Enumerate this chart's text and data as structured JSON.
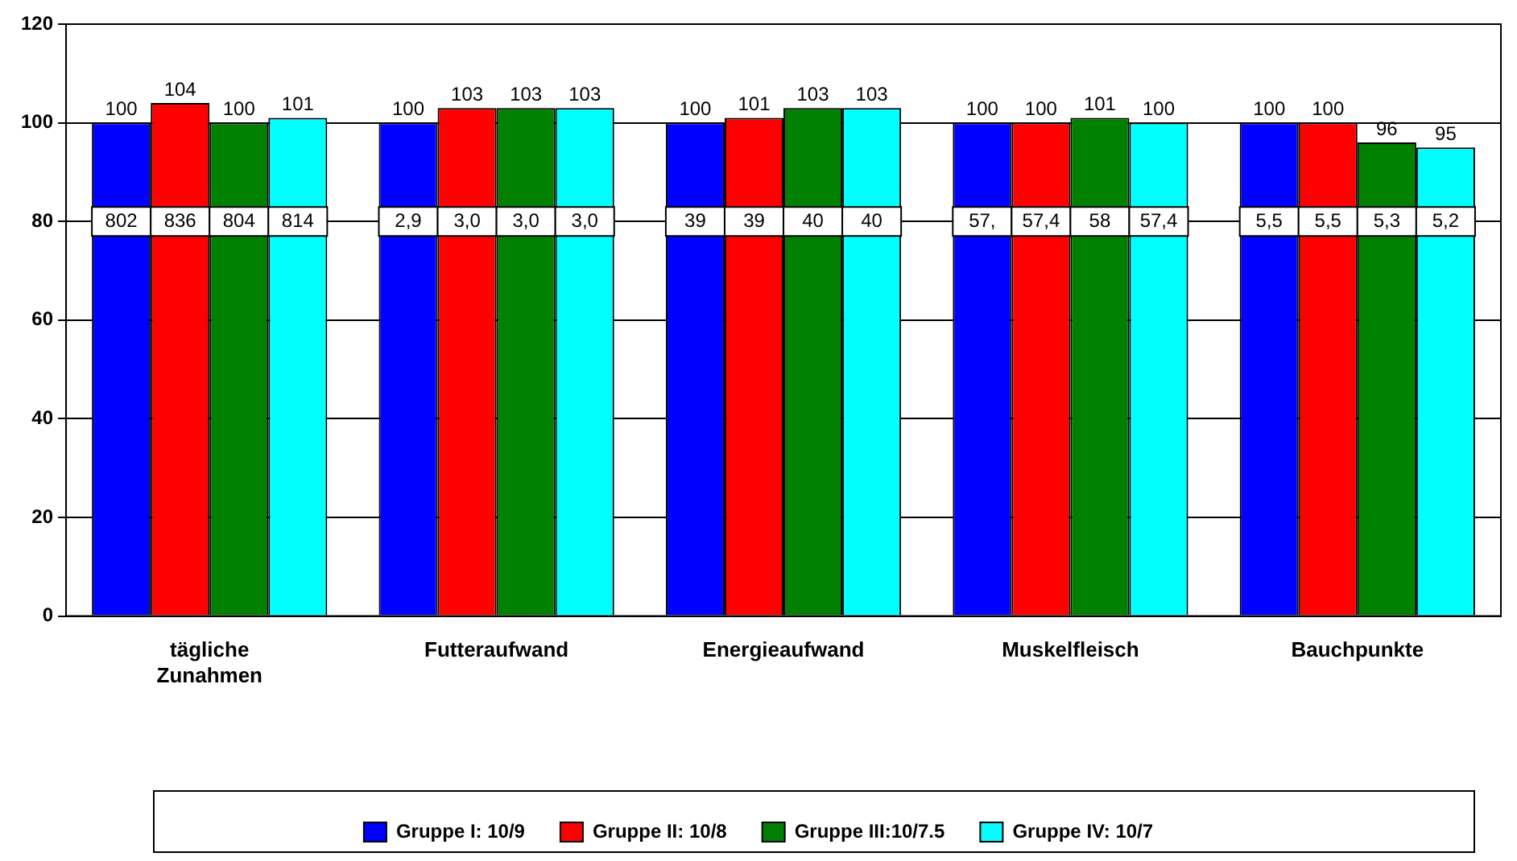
{
  "chart_data": {
    "type": "bar",
    "categories": [
      "tägliche\nZunahmen",
      "Futteraufwand",
      "Energieaufwand",
      "Muskelfleisch",
      "Bauchpunkte"
    ],
    "series": [
      {
        "name": "Gruppe I: 10/9",
        "color": "#0000ff",
        "values": [
          100,
          100,
          100,
          100,
          100
        ]
      },
      {
        "name": "Gruppe II: 10/8",
        "color": "#ff0000",
        "values": [
          104,
          103,
          101,
          100,
          100
        ]
      },
      {
        "name": "Gruppe III:10/7.5",
        "color": "#008000",
        "values": [
          100,
          103,
          103,
          101,
          96
        ]
      },
      {
        "name": "Gruppe IV: 10/7",
        "color": "#00ffff",
        "values": [
          101,
          103,
          103,
          100,
          95
        ]
      }
    ],
    "annotations": [
      "802",
      "836",
      "804",
      "814",
      "2,9",
      "3,0",
      "3,0",
      "3,0",
      "39",
      "39",
      "40",
      "40",
      "57,",
      "57,4",
      "58",
      "57,4",
      "5,5",
      "5,5",
      "5,3",
      "5,2"
    ],
    "ylim": [
      0,
      120
    ],
    "yticks": [
      0,
      20,
      40,
      60,
      80,
      100,
      120
    ],
    "grid": "y",
    "legend": "bottom",
    "data_labels": true
  }
}
